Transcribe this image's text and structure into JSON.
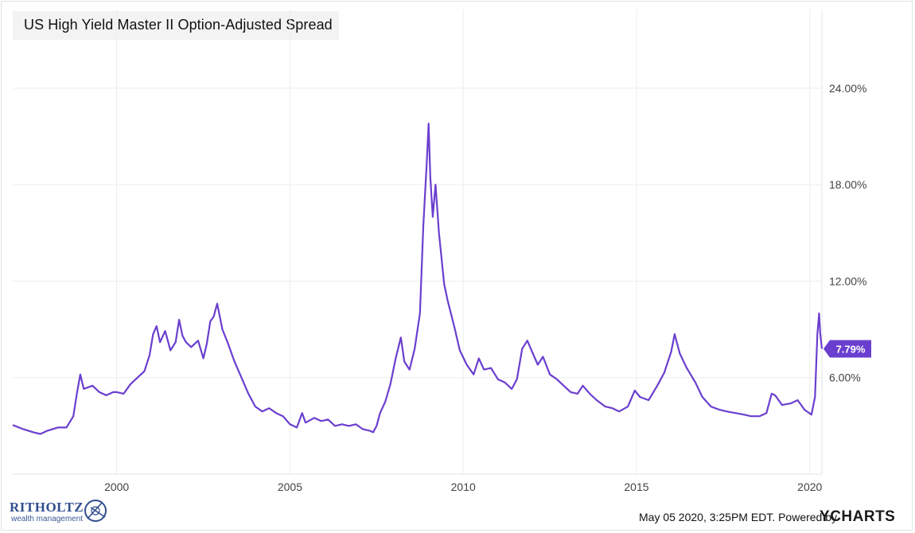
{
  "chart_data": {
    "type": "line",
    "title": "US High Yield Master II Option-Adjusted Spread",
    "xlabel": "",
    "ylabel": "",
    "x_ticks": [
      "2000",
      "2005",
      "2010",
      "2015",
      "2020"
    ],
    "y_ticks": [
      "6.00%",
      "12.00%",
      "18.00%",
      "24.00%"
    ],
    "ylim": [
      0,
      28
    ],
    "xlim": [
      1997.0,
      2020.35
    ],
    "grid": true,
    "color": "#6a3fcf",
    "last_value_label": "7.79%",
    "series": [
      {
        "values": [
          [
            1997.0,
            3.05
          ],
          [
            1997.3,
            2.8
          ],
          [
            1997.6,
            2.6
          ],
          [
            1997.8,
            2.5
          ],
          [
            1998.0,
            2.7
          ],
          [
            1998.3,
            2.9
          ],
          [
            1998.55,
            2.9
          ],
          [
            1998.75,
            3.6
          ],
          [
            1998.85,
            5.0
          ],
          [
            1998.95,
            6.2
          ],
          [
            1999.05,
            5.3
          ],
          [
            1999.3,
            5.5
          ],
          [
            1999.5,
            5.1
          ],
          [
            1999.7,
            4.9
          ],
          [
            1999.9,
            5.1
          ],
          [
            2000.0,
            5.1
          ],
          [
            2000.2,
            5.0
          ],
          [
            2000.4,
            5.6
          ],
          [
            2000.6,
            6.0
          ],
          [
            2000.8,
            6.4
          ],
          [
            2000.95,
            7.4
          ],
          [
            2001.05,
            8.7
          ],
          [
            2001.15,
            9.2
          ],
          [
            2001.25,
            8.2
          ],
          [
            2001.4,
            8.9
          ],
          [
            2001.55,
            7.7
          ],
          [
            2001.7,
            8.2
          ],
          [
            2001.8,
            9.6
          ],
          [
            2001.9,
            8.6
          ],
          [
            2002.0,
            8.2
          ],
          [
            2002.15,
            7.9
          ],
          [
            2002.35,
            8.3
          ],
          [
            2002.5,
            7.2
          ],
          [
            2002.6,
            8.1
          ],
          [
            2002.7,
            9.5
          ],
          [
            2002.8,
            9.8
          ],
          [
            2002.9,
            10.6
          ],
          [
            2003.05,
            9.0
          ],
          [
            2003.2,
            8.2
          ],
          [
            2003.4,
            7.0
          ],
          [
            2003.6,
            6.0
          ],
          [
            2003.8,
            5.0
          ],
          [
            2004.0,
            4.2
          ],
          [
            2004.2,
            3.9
          ],
          [
            2004.4,
            4.1
          ],
          [
            2004.6,
            3.8
          ],
          [
            2004.8,
            3.6
          ],
          [
            2005.0,
            3.1
          ],
          [
            2005.2,
            2.9
          ],
          [
            2005.35,
            3.8
          ],
          [
            2005.45,
            3.2
          ],
          [
            2005.7,
            3.5
          ],
          [
            2005.9,
            3.3
          ],
          [
            2006.1,
            3.4
          ],
          [
            2006.3,
            3.0
          ],
          [
            2006.5,
            3.1
          ],
          [
            2006.7,
            3.0
          ],
          [
            2006.9,
            3.1
          ],
          [
            2007.1,
            2.8
          ],
          [
            2007.3,
            2.7
          ],
          [
            2007.4,
            2.6
          ],
          [
            2007.5,
            3.0
          ],
          [
            2007.6,
            3.8
          ],
          [
            2007.75,
            4.5
          ],
          [
            2007.9,
            5.6
          ],
          [
            2008.05,
            7.2
          ],
          [
            2008.2,
            8.5
          ],
          [
            2008.3,
            7.0
          ],
          [
            2008.45,
            6.5
          ],
          [
            2008.6,
            7.8
          ],
          [
            2008.75,
            10.0
          ],
          [
            2008.85,
            15.5
          ],
          [
            2008.95,
            19.5
          ],
          [
            2009.0,
            21.8
          ],
          [
            2009.05,
            18.5
          ],
          [
            2009.12,
            16.0
          ],
          [
            2009.2,
            18.0
          ],
          [
            2009.3,
            15.0
          ],
          [
            2009.45,
            11.8
          ],
          [
            2009.55,
            10.8
          ],
          [
            2009.75,
            9.1
          ],
          [
            2009.9,
            7.7
          ],
          [
            2010.1,
            6.8
          ],
          [
            2010.3,
            6.2
          ],
          [
            2010.45,
            7.2
          ],
          [
            2010.6,
            6.5
          ],
          [
            2010.8,
            6.6
          ],
          [
            2011.0,
            5.9
          ],
          [
            2011.2,
            5.7
          ],
          [
            2011.4,
            5.3
          ],
          [
            2011.55,
            5.9
          ],
          [
            2011.7,
            7.8
          ],
          [
            2011.85,
            8.3
          ],
          [
            2011.95,
            7.8
          ],
          [
            2012.15,
            6.8
          ],
          [
            2012.3,
            7.3
          ],
          [
            2012.5,
            6.2
          ],
          [
            2012.7,
            5.9
          ],
          [
            2012.9,
            5.5
          ],
          [
            2013.1,
            5.1
          ],
          [
            2013.3,
            5.0
          ],
          [
            2013.45,
            5.5
          ],
          [
            2013.65,
            5.0
          ],
          [
            2013.85,
            4.6
          ],
          [
            2014.1,
            4.2
          ],
          [
            2014.3,
            4.1
          ],
          [
            2014.5,
            3.9
          ],
          [
            2014.75,
            4.2
          ],
          [
            2014.95,
            5.2
          ],
          [
            2015.1,
            4.8
          ],
          [
            2015.35,
            4.6
          ],
          [
            2015.6,
            5.5
          ],
          [
            2015.8,
            6.3
          ],
          [
            2016.0,
            7.6
          ],
          [
            2016.1,
            8.7
          ],
          [
            2016.25,
            7.5
          ],
          [
            2016.45,
            6.6
          ],
          [
            2016.7,
            5.7
          ],
          [
            2016.9,
            4.8
          ],
          [
            2017.15,
            4.2
          ],
          [
            2017.4,
            4.0
          ],
          [
            2017.6,
            3.9
          ],
          [
            2017.85,
            3.8
          ],
          [
            2018.1,
            3.7
          ],
          [
            2018.3,
            3.6
          ],
          [
            2018.55,
            3.6
          ],
          [
            2018.75,
            3.8
          ],
          [
            2018.9,
            5.0
          ],
          [
            2019.0,
            4.9
          ],
          [
            2019.2,
            4.3
          ],
          [
            2019.45,
            4.4
          ],
          [
            2019.65,
            4.6
          ],
          [
            2019.85,
            4.0
          ],
          [
            2020.05,
            3.7
          ],
          [
            2020.15,
            4.8
          ],
          [
            2020.22,
            8.7
          ],
          [
            2020.27,
            10.0
          ],
          [
            2020.3,
            8.8
          ],
          [
            2020.35,
            7.79
          ]
        ]
      }
    ]
  },
  "footer": {
    "timestamp": "May 05 2020, 3:25PM EDT. Powered by",
    "logo_text": "CHARTS"
  },
  "brand": {
    "name": "RITHOLTZ",
    "sub": "wealth management"
  }
}
